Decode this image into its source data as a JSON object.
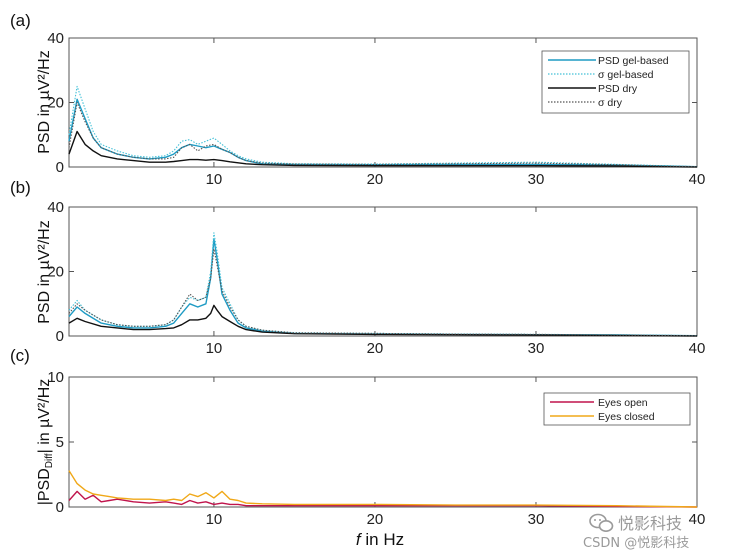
{
  "colors": {
    "psd_gel": "#1e9bc4",
    "sigma_gel": "#43c1d8",
    "psd_dry": "#111111",
    "sigma_dry": "#555555",
    "eyes_open": "#c0144c",
    "eyes_closed": "#f0a818",
    "axis": "#555555"
  },
  "watermark": {
    "line1": "悦影科技",
    "line2": "CSDN @悦影科技",
    "icon": "wechat-icon"
  },
  "x_axis_label": "in Hz",
  "x_axis_symbol": "f",
  "chart_data": [
    {
      "type": "line",
      "panel_label": "(a)",
      "ylabel": "PSD in µV²/Hz",
      "xlim": [
        1,
        40
      ],
      "ylim": [
        0,
        40
      ],
      "x_ticks": [
        10,
        20,
        30,
        40
      ],
      "y_ticks": [
        0,
        20,
        40
      ],
      "legend_position": "top-right",
      "x": [
        1,
        1.5,
        2,
        2.5,
        3,
        4,
        5,
        6,
        7,
        7.5,
        8,
        8.5,
        9,
        9.5,
        10,
        10.5,
        11,
        11.5,
        12,
        13,
        15,
        20,
        25,
        30,
        35,
        38,
        40
      ],
      "series": [
        {
          "name": "PSD gel-based",
          "style": "solid",
          "color_key": "psd_gel",
          "values": [
            8,
            21,
            15,
            9,
            6,
            4,
            3,
            2.5,
            3,
            4,
            6,
            7,
            6.5,
            6,
            6.5,
            5.5,
            4.5,
            3,
            2,
            1,
            0.8,
            0.7,
            0.8,
            0.8,
            0.6,
            0.3,
            0.1
          ]
        },
        {
          "name": "σ gel-based",
          "style": "dotted",
          "color_key": "sigma_gel",
          "values": [
            10,
            25,
            18,
            11,
            7,
            5,
            3.5,
            3,
            3.5,
            5,
            8,
            8.5,
            7,
            8,
            9,
            7,
            5,
            3.5,
            2.5,
            1.5,
            1,
            0.9,
            1.2,
            1.5,
            0.8,
            0.4,
            0.1
          ]
        },
        {
          "name": "PSD dry",
          "style": "solid",
          "color_key": "psd_dry",
          "values": [
            4,
            11,
            7,
            5,
            3.5,
            2.5,
            2,
            1.5,
            1.5,
            1.7,
            2,
            2.3,
            2.3,
            2.1,
            2.3,
            2,
            1.6,
            1.3,
            1,
            0.7,
            0.5,
            0.4,
            0.4,
            0.4,
            0.3,
            0.1,
            0
          ]
        },
        {
          "name": "σ dry",
          "style": "dotted",
          "color_key": "sigma_dry",
          "values": [
            6,
            20,
            14,
            9,
            6,
            4,
            3,
            2.5,
            2.5,
            3,
            6,
            7,
            5,
            6.5,
            7,
            5.5,
            4.5,
            3,
            2,
            1.2,
            0.9,
            0.8,
            1,
            1.2,
            0.7,
            0.3,
            0.1
          ]
        }
      ]
    },
    {
      "type": "line",
      "panel_label": "(b)",
      "ylabel": "PSD in µV²/Hz",
      "xlim": [
        1,
        40
      ],
      "ylim": [
        0,
        40
      ],
      "x_ticks": [
        10,
        20,
        30,
        40
      ],
      "y_ticks": [
        0,
        20,
        40
      ],
      "legend_position": "none",
      "x": [
        1,
        1.5,
        2,
        3,
        4,
        5,
        6,
        7,
        7.5,
        8,
        8.5,
        9,
        9.5,
        9.8,
        10,
        10.2,
        10.5,
        11,
        11.5,
        12,
        13,
        15,
        20,
        25,
        30,
        35,
        40
      ],
      "series": [
        {
          "name": "PSD gel-based",
          "style": "solid",
          "color_key": "psd_gel",
          "values": [
            6,
            9,
            7,
            4,
            3,
            2.5,
            2.5,
            3,
            4,
            7,
            10,
            9,
            10,
            18,
            30,
            24,
            13,
            8,
            4,
            2.5,
            1.5,
            0.8,
            0.6,
            0.5,
            0.4,
            0.3,
            0.1
          ]
        },
        {
          "name": "σ gel-based",
          "style": "dotted",
          "color_key": "sigma_gel",
          "values": [
            8,
            11,
            8,
            5,
            3.5,
            3,
            3,
            3.5,
            5,
            9,
            12,
            11,
            12,
            20,
            32,
            26,
            15,
            10,
            5,
            3,
            1.8,
            1,
            0.8,
            0.6,
            0.5,
            0.4,
            0.1
          ]
        },
        {
          "name": "PSD dry",
          "style": "solid",
          "color_key": "psd_dry",
          "values": [
            4,
            5.5,
            4.5,
            3,
            2.5,
            2,
            2,
            2.3,
            2.5,
            3.5,
            5,
            5,
            5.5,
            7,
            9.5,
            8,
            6,
            4.5,
            3,
            2,
            1.2,
            0.7,
            0.5,
            0.4,
            0.3,
            0.2,
            0
          ]
        },
        {
          "name": "σ dry",
          "style": "dotted",
          "color_key": "sigma_dry",
          "values": [
            7,
            10,
            8,
            5,
            3.5,
            3,
            3,
            3.5,
            5,
            9,
            13,
            11,
            12,
            18,
            27,
            22,
            14,
            9,
            5,
            3,
            1.8,
            1,
            0.8,
            0.6,
            0.5,
            0.3,
            0.1
          ]
        }
      ]
    },
    {
      "type": "line",
      "panel_label": "(c)",
      "ylabel": "|PSD_Diff| in µV²/Hz",
      "ylabel_parts": {
        "pre": "|PSD",
        "sub": "Diff",
        "post": "| in µV²/Hz"
      },
      "xlim": [
        1,
        40
      ],
      "ylim": [
        0,
        10
      ],
      "x_ticks": [
        10,
        20,
        30,
        40
      ],
      "y_ticks": [
        0,
        5,
        10
      ],
      "legend_position": "top-right",
      "x": [
        1,
        1.5,
        2,
        2.5,
        3,
        3.5,
        4,
        5,
        6,
        7,
        7.5,
        8,
        8.5,
        9,
        9.5,
        10,
        10.5,
        11,
        11.5,
        12,
        13,
        15,
        20,
        25,
        30,
        35,
        40
      ],
      "series": [
        {
          "name": "Eyes open",
          "style": "solid",
          "color_key": "eyes_open",
          "values": [
            0.5,
            1.2,
            0.6,
            0.9,
            0.4,
            0.5,
            0.6,
            0.4,
            0.3,
            0.4,
            0.3,
            0.2,
            0.5,
            0.3,
            0.4,
            0.2,
            0.3,
            0.2,
            0.2,
            0.1,
            0.1,
            0.1,
            0.1,
            0.1,
            0.1,
            0.05,
            0
          ]
        },
        {
          "name": "Eyes closed",
          "style": "solid",
          "color_key": "eyes_closed",
          "values": [
            2.8,
            1.8,
            1.3,
            1.0,
            0.9,
            0.8,
            0.7,
            0.6,
            0.6,
            0.5,
            0.6,
            0.5,
            1.0,
            0.8,
            1.1,
            0.7,
            1.2,
            0.6,
            0.5,
            0.3,
            0.25,
            0.2,
            0.2,
            0.15,
            0.15,
            0.1,
            0
          ]
        }
      ]
    }
  ]
}
